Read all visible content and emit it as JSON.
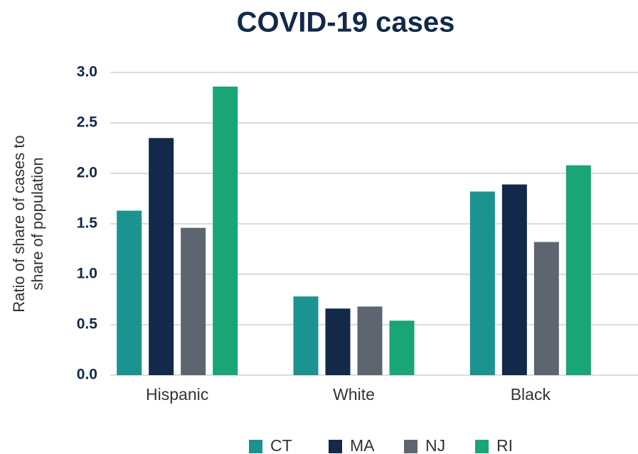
{
  "chart_data": {
    "type": "bar",
    "title": "COVID-19 cases",
    "ylabel": [
      "Ratio of share of cases to",
      "share of population"
    ],
    "categories": [
      "Hispanic",
      "White",
      "Black"
    ],
    "series": [
      {
        "name": "CT",
        "color": "#1a9391",
        "values": [
          1.63,
          0.78,
          1.82
        ]
      },
      {
        "name": "MA",
        "color": "#12294a",
        "values": [
          2.35,
          0.66,
          1.89
        ]
      },
      {
        "name": "NJ",
        "color": "#5d6670",
        "values": [
          1.46,
          0.68,
          1.32
        ]
      },
      {
        "name": "RI",
        "color": "#1aa574",
        "values": [
          2.86,
          0.54,
          2.08
        ]
      }
    ],
    "ylim": [
      0,
      3
    ],
    "yticks": [
      {
        "value": 0,
        "label": "0.0"
      },
      0.5,
      {
        "value": 1,
        "label": "1.0"
      },
      1.5,
      {
        "value": 2,
        "label": "2.0"
      },
      2.5,
      {
        "value": 3,
        "label": "3.0"
      }
    ],
    "grid": true,
    "legend": "bottom"
  }
}
